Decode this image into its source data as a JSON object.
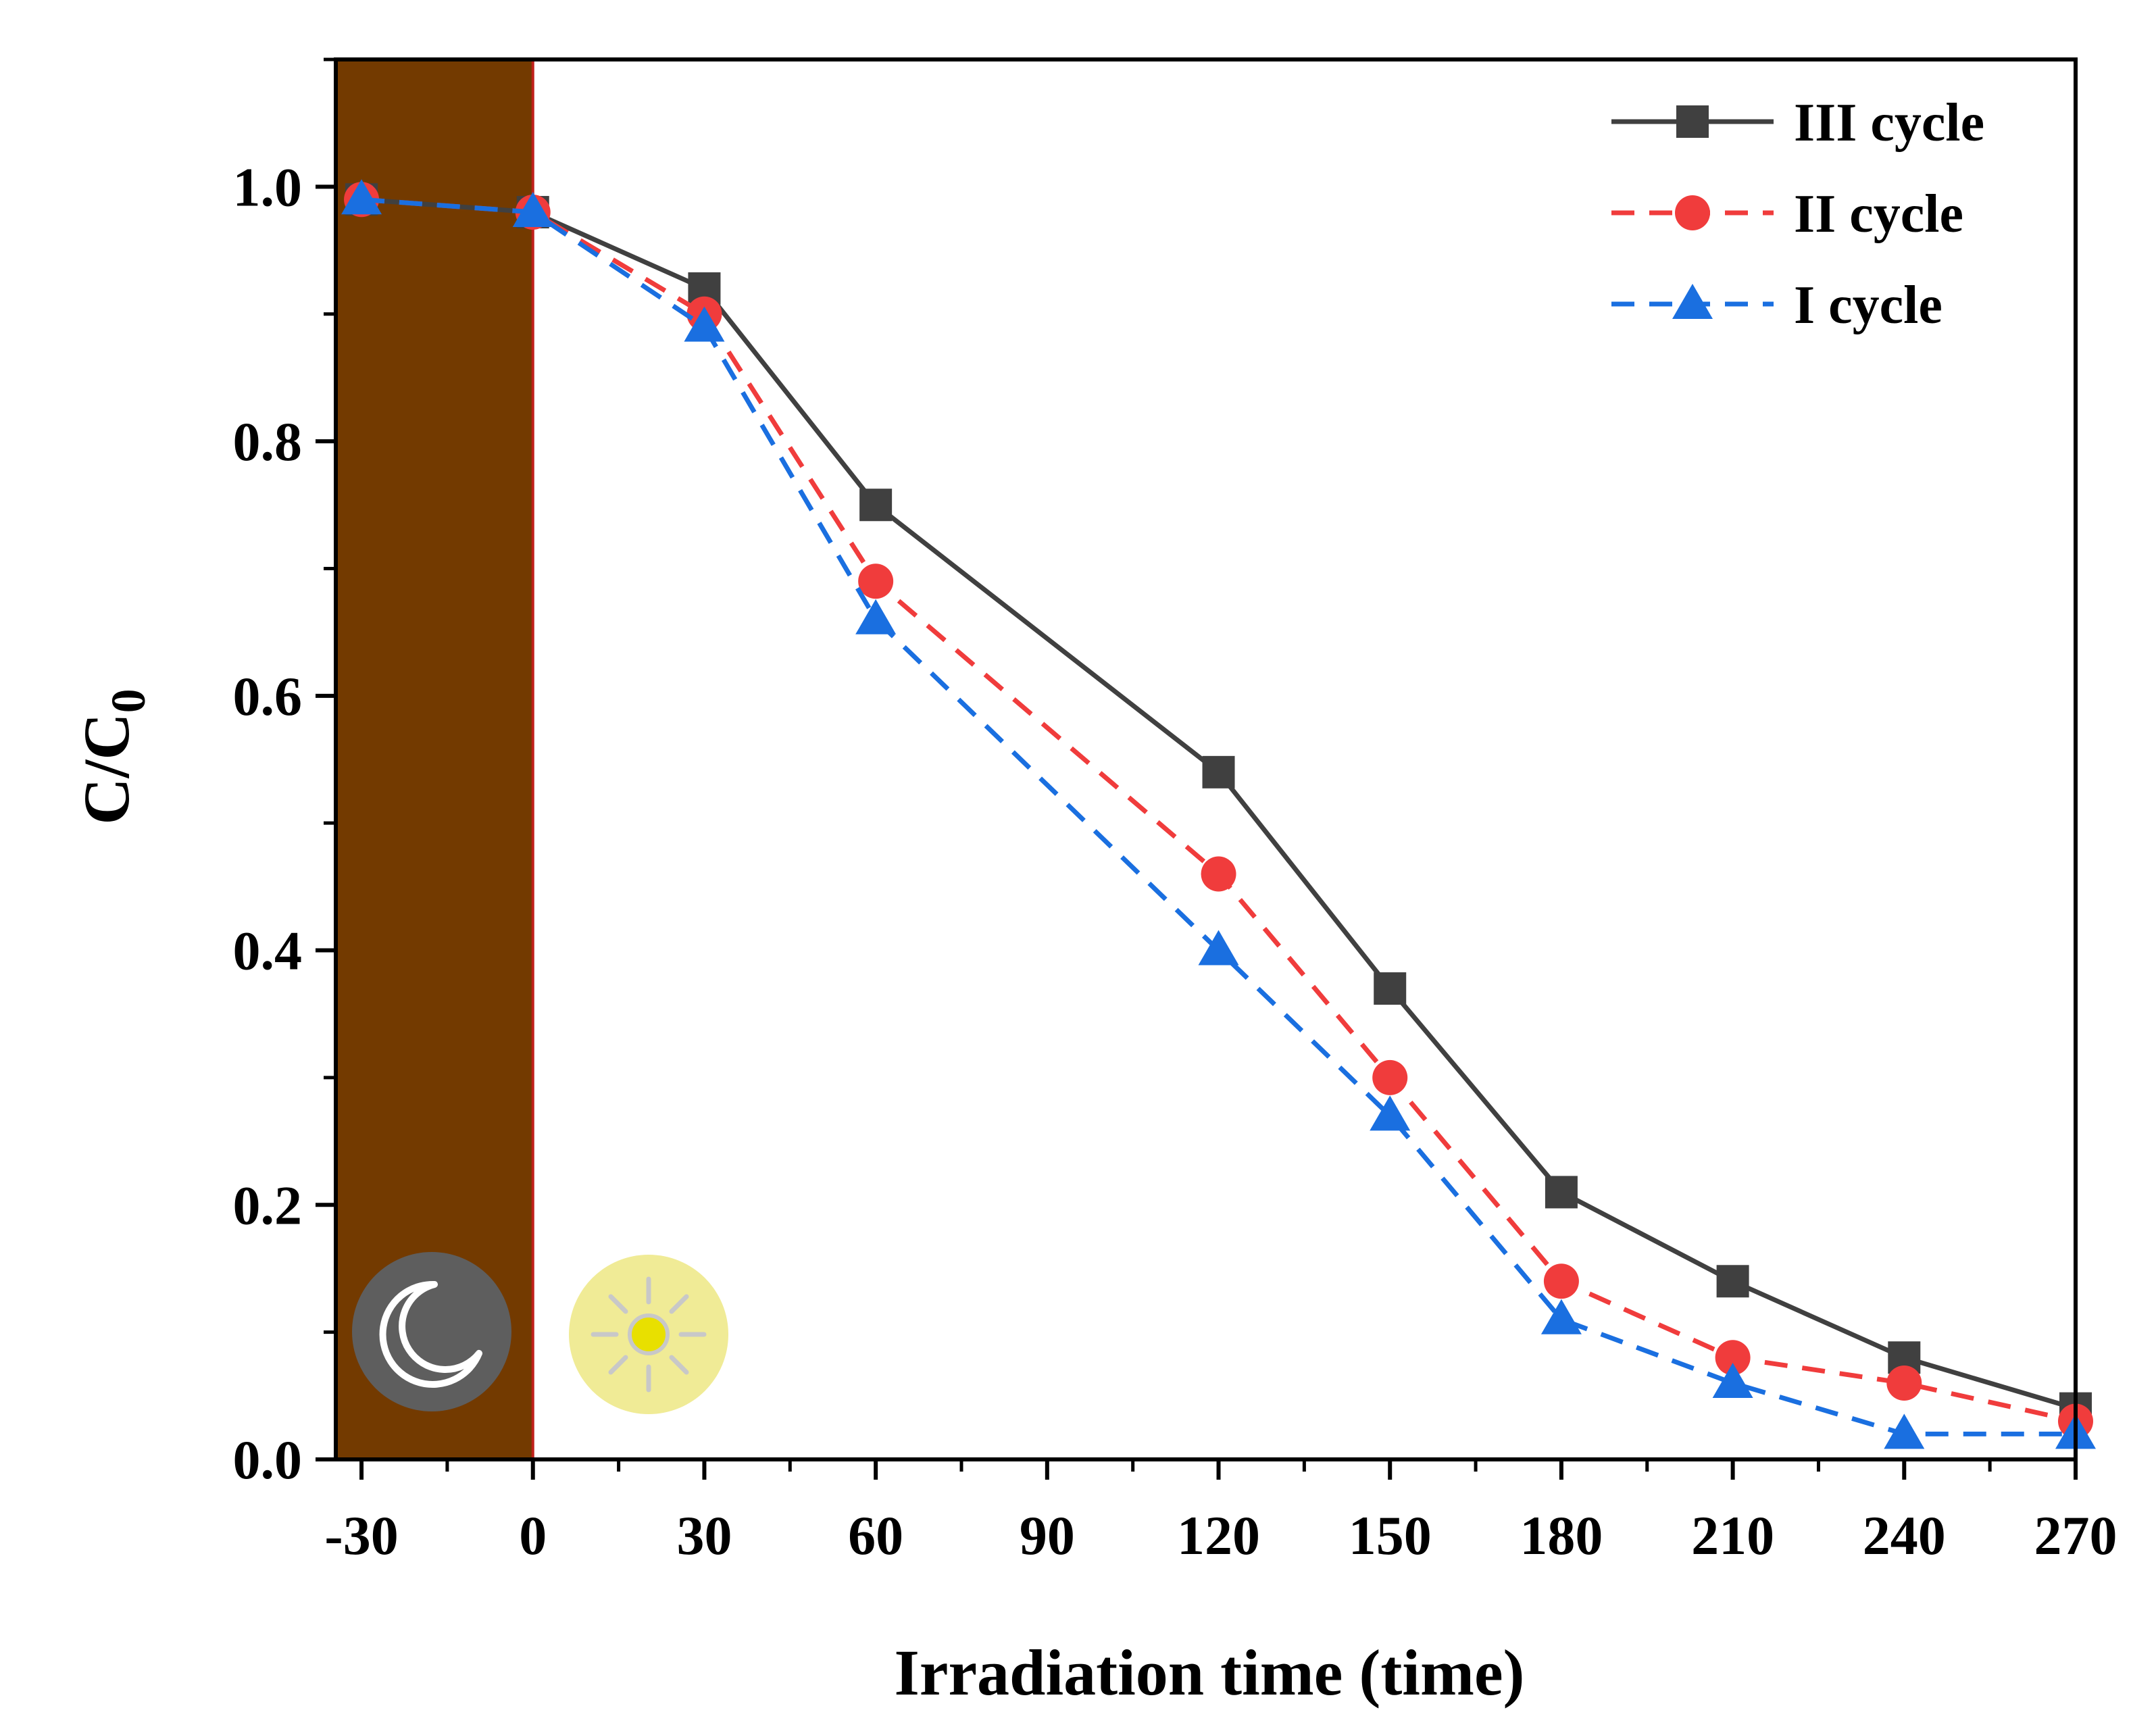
{
  "chart_data": {
    "type": "line",
    "xlabel": "Irradiation time (time)",
    "ylabel_main": "C/C",
    "ylabel_sub": "0",
    "x": [
      -30,
      0,
      30,
      60,
      120,
      150,
      180,
      210,
      240,
      270
    ],
    "x_ticks": [
      "-30",
      "0",
      "30",
      "60",
      "90",
      "120",
      "150",
      "180",
      "210",
      "240",
      "270"
    ],
    "y_ticks": [
      "0.0",
      "0.2",
      "0.4",
      "0.6",
      "0.8",
      "1.0"
    ],
    "xlim": [
      -34.5,
      270
    ],
    "ylim": [
      0,
      1.1
    ],
    "dark_region": [
      -34.5,
      0
    ],
    "legend_position": "top-right",
    "series": [
      {
        "name": "III cycle",
        "color": "#404040",
        "marker": "square",
        "line": "solid",
        "values": [
          0.99,
          0.98,
          0.92,
          0.75,
          0.54,
          0.37,
          0.21,
          0.14,
          0.08,
          0.04
        ]
      },
      {
        "name": "II cycle",
        "color": "#f03c3c",
        "marker": "circle",
        "line": "dashed",
        "values": [
          0.99,
          0.98,
          0.9,
          0.69,
          0.46,
          0.3,
          0.14,
          0.08,
          0.06,
          0.03
        ]
      },
      {
        "name": "I cycle",
        "color": "#1a6fe0",
        "marker": "triangle",
        "line": "dashed",
        "values": [
          0.99,
          0.98,
          0.89,
          0.66,
          0.4,
          0.27,
          0.11,
          0.06,
          0.02,
          0.02
        ]
      }
    ]
  },
  "colors": {
    "dark_region_fill": "#733a00",
    "dark_region_edge": "#c0201a",
    "moon_badge": "#5e5e5e",
    "sun_badge": "#f0eb96",
    "sun_core": "#e8e000"
  },
  "icons": {
    "dark": "moon-icon",
    "light": "sun-icon"
  }
}
